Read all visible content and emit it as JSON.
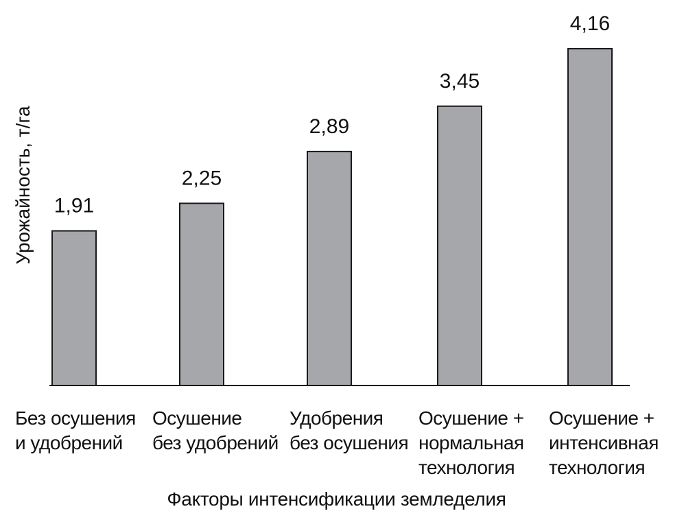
{
  "chart_data": {
    "type": "bar",
    "categories": [
      "Без осушения\nи удобрений",
      "Осушение\nбез удобрений",
      "Удобрения\nбез осушения",
      "Осушение +\nнормальная\nтехнология",
      "Осушение +\nинтенсивная\nтехнология"
    ],
    "values": [
      1.91,
      2.25,
      2.89,
      3.45,
      4.16
    ],
    "value_labels": [
      "1,91",
      "2,25",
      "2,89",
      "3,45",
      "4,16"
    ],
    "xlabel": "Факторы интенсификации земледелия",
    "ylabel": "Урожайность, т/га",
    "ylim": [
      0,
      4.16
    ],
    "grid": false,
    "legend": "none",
    "bar_color": "#a6a7ab",
    "bar_edge_color": "#1a1a1a"
  }
}
